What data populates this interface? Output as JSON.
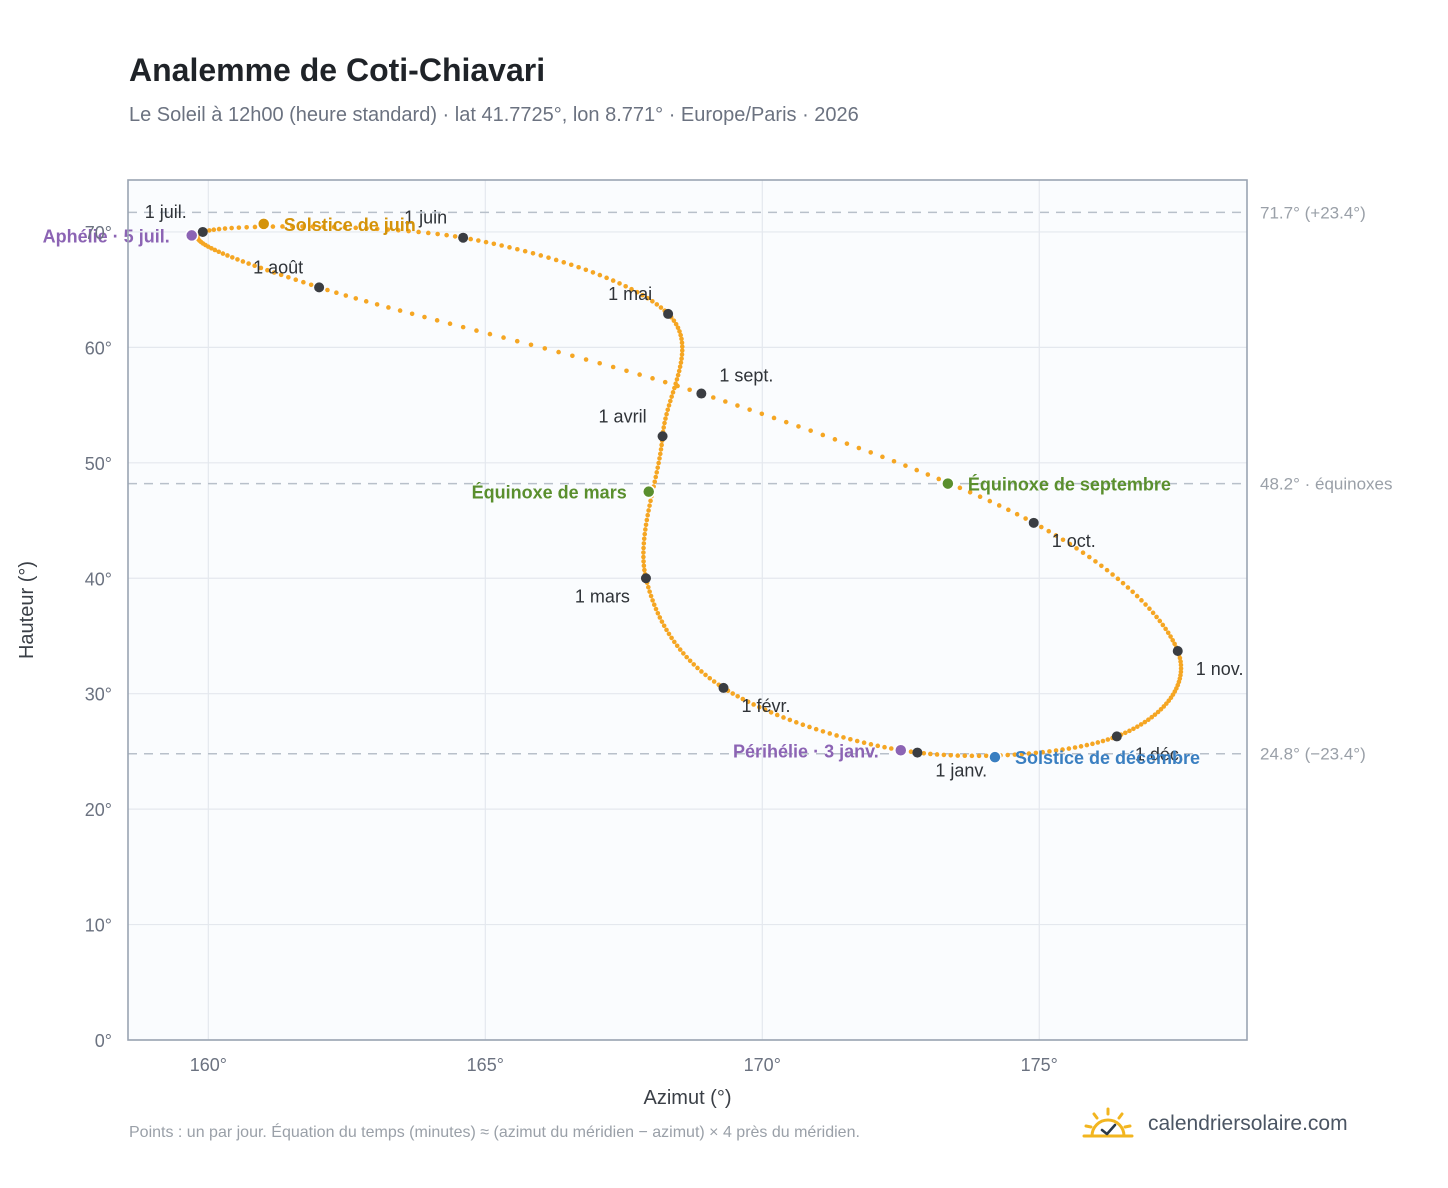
{
  "title": "Analemme de Coti-Chiavari",
  "subtitle": "Le Soleil à 12h00 (heure standard) · lat 41.7725°, lon 8.771° · Europe/Paris · 2026",
  "footnote": "Points : un par jour. Équation du temps (minutes) ≈ (azimut du méridien − azimut) × 4 près du méridien.",
  "brand": {
    "name": "calendriersolaire.com",
    "logo_icon": "sun-check-icon"
  },
  "chart_data": {
    "type": "scatter",
    "xlabel": "Azimut (°)",
    "ylabel": "Hauteur (°)",
    "xlim": [
      158.55,
      178.75
    ],
    "ylim": [
      0,
      74.5
    ],
    "x_ticks": [
      160,
      165,
      170,
      175
    ],
    "x_tick_labels": [
      "160°",
      "165°",
      "170°",
      "175°"
    ],
    "y_ticks": [
      0,
      10,
      20,
      30,
      40,
      50,
      60,
      70
    ],
    "y_tick_labels": [
      "0°",
      "10°",
      "20°",
      "30°",
      "40°",
      "50°",
      "60°",
      "70°"
    ],
    "grid": true,
    "colors": {
      "curve": "#f5a623",
      "month_marker": "#3a3d42",
      "solstice_june": "#d4930a",
      "solstice_december": "#3a7fc1",
      "equinox": "#5a8f2e",
      "apsis": "#8c64b4",
      "reference_line": "#b8c0ca"
    },
    "reference_lines": [
      {
        "y": 71.7,
        "label": "71.7° (+23.4°)"
      },
      {
        "y": 48.2,
        "label": "48.2° · équinoxes"
      },
      {
        "y": 24.8,
        "label": "24.8° (−23.4°)"
      }
    ],
    "month_markers": [
      {
        "label": "1 janv.",
        "x": 172.8,
        "y": 24.9,
        "label_side": "below"
      },
      {
        "label": "1 févr.",
        "x": 169.3,
        "y": 30.5,
        "label_side": "below-right"
      },
      {
        "label": "1 mars",
        "x": 167.9,
        "y": 40.0,
        "label_side": "below-left"
      },
      {
        "label": "1 avril",
        "x": 168.2,
        "y": 52.3,
        "label_side": "above-left"
      },
      {
        "label": "1 mai",
        "x": 168.3,
        "y": 62.9,
        "label_side": "above-left"
      },
      {
        "label": "1 juin",
        "x": 164.6,
        "y": 69.5,
        "label_side": "above-left"
      },
      {
        "label": "1 juil.",
        "x": 159.9,
        "y": 70.0,
        "label_side": "above-left"
      },
      {
        "label": "1 août",
        "x": 162.0,
        "y": 65.2,
        "label_side": "above-left"
      },
      {
        "label": "1 sept.",
        "x": 168.9,
        "y": 56.0,
        "label_side": "above-right"
      },
      {
        "label": "1 oct.",
        "x": 174.9,
        "y": 44.8,
        "label_side": "below-right"
      },
      {
        "label": "1 nov.",
        "x": 177.5,
        "y": 33.7,
        "label_side": "below-right"
      },
      {
        "label": "1 déc.",
        "x": 176.4,
        "y": 26.3,
        "label_side": "below-right"
      }
    ],
    "events": [
      {
        "label": "Solstice de juin",
        "x": 161.0,
        "y": 70.7,
        "kind": "solstice_june",
        "label_side": "right"
      },
      {
        "label": "Solstice de décembre",
        "x": 174.2,
        "y": 24.5,
        "kind": "solstice_december",
        "label_side": "right"
      },
      {
        "label": "Équinoxe de mars",
        "x": 167.95,
        "y": 47.5,
        "kind": "equinox",
        "label_side": "left"
      },
      {
        "label": "Équinoxe de septembre",
        "x": 173.35,
        "y": 48.2,
        "kind": "equinox",
        "label_side": "right"
      },
      {
        "label": "Aphélie · 5 juil.",
        "x": 159.7,
        "y": 69.7,
        "kind": "apsis",
        "label_side": "left"
      },
      {
        "label": "Périhélie · 3 janv.",
        "x": 172.5,
        "y": 25.1,
        "kind": "apsis",
        "label_side": "left"
      }
    ]
  }
}
